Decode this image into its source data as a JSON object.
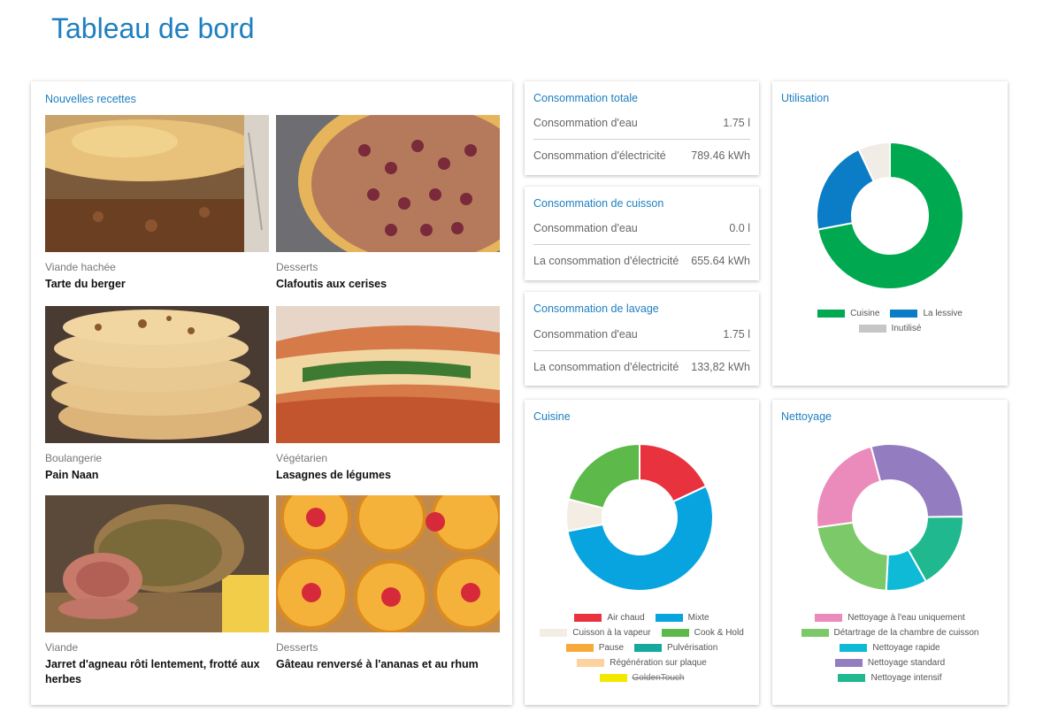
{
  "page": {
    "title": "Tableau de bord"
  },
  "recipes": {
    "title": "Nouvelles recettes",
    "items": [
      {
        "category": "Viande hachée",
        "name": "Tarte du berger"
      },
      {
        "category": "Desserts",
        "name": "Clafoutis aux cerises"
      },
      {
        "category": "Boulangerie",
        "name": "Pain Naan"
      },
      {
        "category": "Végétarien",
        "name": "Lasagnes de légumes"
      },
      {
        "category": "Viande",
        "name": "Jarret d'agneau rôti lentement, frotté aux herbes"
      },
      {
        "category": "Desserts",
        "name": "Gâteau renversé à l'ananas et au rhum"
      }
    ]
  },
  "total": {
    "title": "Consommation totale",
    "rows": [
      {
        "label": "Consommation d'eau",
        "value": "1.75 l"
      },
      {
        "label": "Consommation d'électricité",
        "value": "789.46 kWh"
      }
    ]
  },
  "cooking": {
    "title": "Consommation de cuisson",
    "rows": [
      {
        "label": "Consommation d'eau",
        "value": "0.0 l"
      },
      {
        "label": "La consommation d'électricité",
        "value": "655.64 kWh"
      }
    ]
  },
  "washing": {
    "title": "Consommation de lavage",
    "rows": [
      {
        "label": "Consommation d'eau",
        "value": "1.75 l"
      },
      {
        "label": "La consommation d'électricité",
        "value": "133,82 kWh"
      }
    ]
  },
  "usage": {
    "title": "Utilisation",
    "segments": [
      {
        "label": "Cuisine",
        "value": 0.72,
        "color": "#00a94f"
      },
      {
        "label": "La lessive",
        "value": 0.21,
        "color": "#0a7dc6"
      },
      {
        "label": "Inutilisé",
        "value": 0.07,
        "color": "#f1ece6"
      }
    ],
    "legend_rows": [
      [
        0,
        1
      ],
      [
        2
      ]
    ],
    "legend_swatch_overrides": {
      "2": "#c6c6c6"
    }
  },
  "cuisine": {
    "title": "Cuisine",
    "segments": [
      {
        "label": "Air chaud",
        "value": 0.18,
        "color": "#e8333f"
      },
      {
        "label": "Mixte",
        "value": 0.54,
        "color": "#08a4e0"
      },
      {
        "label": "Cuisson à la vapeur",
        "value": 0.07,
        "color": "#f3ede4"
      },
      {
        "label": "Cook & Hold",
        "value": 0.21,
        "color": "#5cb94a"
      },
      {
        "label": "Pause",
        "value": 0,
        "color": "#f7a93b"
      },
      {
        "label": "Pulvérisation",
        "value": 0,
        "color": "#14a99c"
      },
      {
        "label": "Régénération sur plaque",
        "value": 0,
        "color": "#fcd39e"
      },
      {
        "label": "GoldenTouch",
        "value": 0,
        "color": "#f3e900",
        "disabled": true
      }
    ],
    "legend_rows": [
      [
        0,
        1
      ],
      [
        2,
        3
      ],
      [
        4,
        5
      ],
      [
        6
      ],
      [
        7
      ]
    ]
  },
  "cleaning": {
    "title": "Nettoyage",
    "segments": [
      {
        "label": "Nettoyage standard",
        "value": 0.29,
        "color": "#937cc0"
      },
      {
        "label": "Nettoyage intensif",
        "value": 0.17,
        "color": "#20b88f"
      },
      {
        "label": "Nettoyage rapide",
        "value": 0.09,
        "color": "#0fbad6"
      },
      {
        "label": "Détartrage de la chambre de cuisson",
        "value": 0.22,
        "color": "#7cc96a"
      },
      {
        "label": "Nettoyage à l'eau uniquement",
        "value": 0.23,
        "color": "#ea8bbb"
      }
    ],
    "legend_rows": [
      [
        4
      ],
      [
        3
      ],
      [
        2
      ],
      [
        0
      ],
      [
        1
      ]
    ]
  }
}
